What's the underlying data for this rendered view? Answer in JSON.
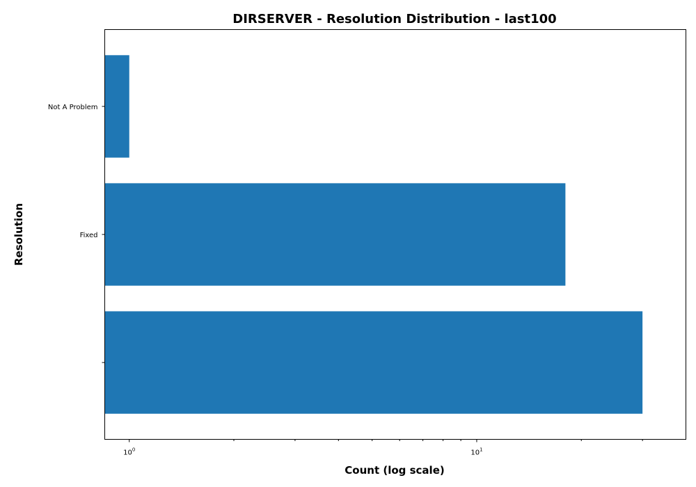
{
  "chart_data": {
    "type": "bar",
    "orientation": "horizontal",
    "title": "DIRSERVER - Resolution Distribution - last100",
    "xlabel": "Count (log scale)",
    "ylabel": "Resolution",
    "x_scale": "log",
    "xlim": [
      0.85,
      40
    ],
    "x_major_ticks": [
      {
        "value": 1,
        "base": "10",
        "exponent": "0"
      },
      {
        "value": 10,
        "base": "10",
        "exponent": "1"
      }
    ],
    "x_minor_ticks": [
      2,
      3,
      4,
      5,
      6,
      7,
      8,
      9,
      20,
      30
    ],
    "categories": [
      "Not A Problem",
      "Fixed",
      ""
    ],
    "values": [
      1,
      18,
      30
    ],
    "grid": false,
    "legend": "none",
    "bar_color": "#1f77b4"
  }
}
